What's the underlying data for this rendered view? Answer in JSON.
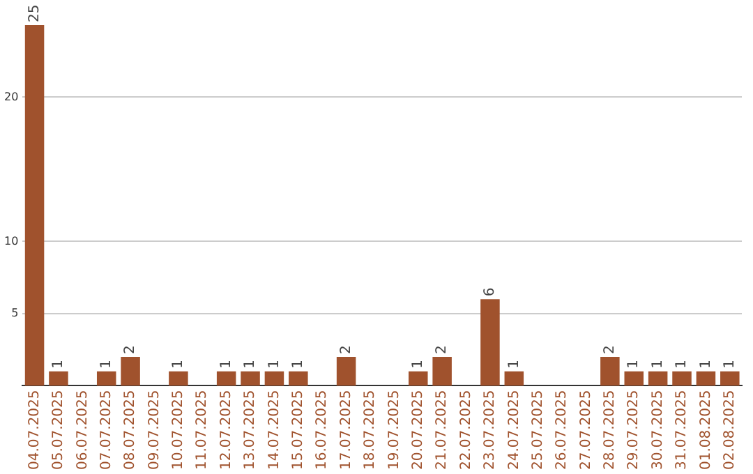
{
  "chart_data": {
    "type": "bar",
    "categories": [
      "04.07.2025",
      "05.07.2025",
      "06.07.2025",
      "07.07.2025",
      "08.07.2025",
      "09.07.2025",
      "10.07.2025",
      "11.07.2025",
      "12.07.2025",
      "13.07.2025",
      "14.07.2025",
      "15.07.2025",
      "16.07.2025",
      "17.07.2025",
      "18.07.2025",
      "19.07.2025",
      "20.07.2025",
      "21.07.2025",
      "22.07.2025",
      "23.07.2025",
      "24.07.2025",
      "25.07.2025",
      "26.07.2025",
      "27.07.2025",
      "28.07.2025",
      "29.07.2025",
      "30.07.2025",
      "31.07.2025",
      "01.08.2025",
      "02.08.2025"
    ],
    "values": [
      25,
      1,
      0,
      1,
      2,
      0,
      1,
      0,
      1,
      1,
      1,
      1,
      0,
      2,
      0,
      0,
      1,
      2,
      0,
      6,
      1,
      0,
      0,
      0,
      2,
      1,
      1,
      1,
      1,
      1
    ],
    "value_labels": [
      "25",
      "1",
      null,
      "1",
      "2",
      null,
      "1",
      null,
      "1",
      "1",
      "1",
      "1",
      null,
      "2",
      null,
      null,
      "1",
      "2",
      null,
      "6",
      "1",
      null,
      null,
      null,
      "2",
      "1",
      "1",
      "1",
      "1",
      "1"
    ],
    "color": "#a0522d",
    "ylim": [
      0,
      25
    ],
    "yticks": [
      5,
      10,
      20
    ],
    "grid": "y",
    "legend": false
  }
}
